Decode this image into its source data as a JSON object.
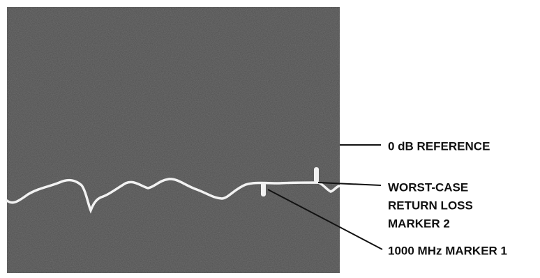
{
  "labels": {
    "reference": "0 dB REFERENCE",
    "marker2": [
      "WORST-CASE",
      "RETURN LOSS",
      "MARKER 2"
    ],
    "marker1": "1000 MHz MARKER 1"
  }
}
